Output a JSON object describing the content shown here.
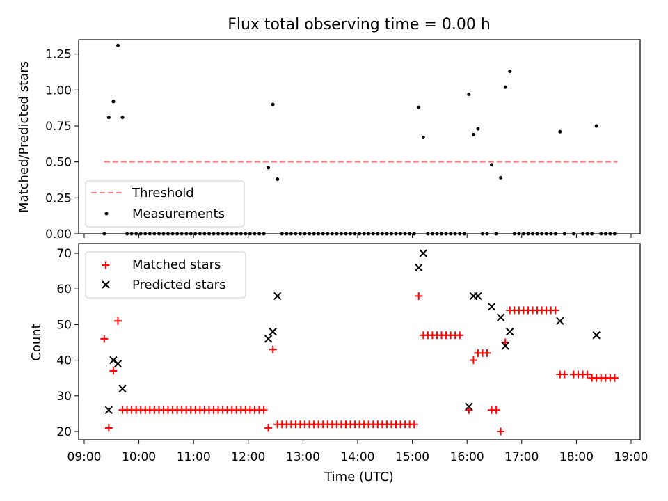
{
  "chart_data": [
    {
      "type": "scatter",
      "title": "Flux total observing time = 0.00 h",
      "xlabel": "",
      "ylabel": "Matched/Predicted stars",
      "xlim": [
        "09:00",
        "19:00"
      ],
      "ylim": [
        0,
        1.35
      ],
      "yticks": [
        "0.00",
        "0.25",
        "0.50",
        "0.75",
        "1.00",
        "1.25"
      ],
      "legend_position": "lower-left",
      "threshold": {
        "name": "Threshold",
        "y": 0.5,
        "x_start": "09:22",
        "x_end": "18:45",
        "color": "#ff7f7f",
        "style": "dashed"
      },
      "series": [
        {
          "name": "Measurements",
          "color": "#000000",
          "marker": "dot",
          "points": [
            [
              "09:22",
              0.0
            ],
            [
              "09:27",
              0.81
            ],
            [
              "09:32",
              0.92
            ],
            [
              "09:37",
              1.31
            ],
            [
              "09:42",
              0.81
            ],
            [
              "09:47",
              0.0
            ],
            [
              "09:52",
              0.0
            ],
            [
              "09:57",
              0.0
            ],
            [
              "10:02",
              0.0
            ],
            [
              "10:07",
              0.0
            ],
            [
              "10:12",
              0.0
            ],
            [
              "10:17",
              0.0
            ],
            [
              "10:22",
              0.0
            ],
            [
              "10:27",
              0.0
            ],
            [
              "10:32",
              0.0
            ],
            [
              "10:37",
              0.0
            ],
            [
              "10:42",
              0.0
            ],
            [
              "10:47",
              0.0
            ],
            [
              "10:52",
              0.0
            ],
            [
              "10:57",
              0.0
            ],
            [
              "11:02",
              0.0
            ],
            [
              "11:07",
              0.0
            ],
            [
              "11:12",
              0.0
            ],
            [
              "11:17",
              0.0
            ],
            [
              "11:22",
              0.0
            ],
            [
              "11:27",
              0.0
            ],
            [
              "11:32",
              0.0
            ],
            [
              "11:37",
              0.0
            ],
            [
              "11:42",
              0.0
            ],
            [
              "11:47",
              0.0
            ],
            [
              "11:52",
              0.0
            ],
            [
              "11:57",
              0.0
            ],
            [
              "12:02",
              0.0
            ],
            [
              "12:07",
              0.0
            ],
            [
              "12:12",
              0.0
            ],
            [
              "12:17",
              0.0
            ],
            [
              "12:22",
              0.46
            ],
            [
              "12:27",
              0.9
            ],
            [
              "12:32",
              0.38
            ],
            [
              "12:37",
              0.0
            ],
            [
              "12:42",
              0.0
            ],
            [
              "12:47",
              0.0
            ],
            [
              "12:52",
              0.0
            ],
            [
              "12:57",
              0.0
            ],
            [
              "13:02",
              0.0
            ],
            [
              "13:07",
              0.0
            ],
            [
              "13:12",
              0.0
            ],
            [
              "13:17",
              0.0
            ],
            [
              "13:22",
              0.0
            ],
            [
              "13:27",
              0.0
            ],
            [
              "13:32",
              0.0
            ],
            [
              "13:37",
              0.0
            ],
            [
              "13:42",
              0.0
            ],
            [
              "13:47",
              0.0
            ],
            [
              "13:52",
              0.0
            ],
            [
              "13:57",
              0.0
            ],
            [
              "14:02",
              0.0
            ],
            [
              "14:07",
              0.0
            ],
            [
              "14:12",
              0.0
            ],
            [
              "14:17",
              0.0
            ],
            [
              "14:22",
              0.0
            ],
            [
              "14:27",
              0.0
            ],
            [
              "14:32",
              0.0
            ],
            [
              "14:37",
              0.0
            ],
            [
              "14:42",
              0.0
            ],
            [
              "14:47",
              0.0
            ],
            [
              "14:52",
              0.0
            ],
            [
              "14:57",
              0.0
            ],
            [
              "15:02",
              0.0
            ],
            [
              "15:07",
              0.88
            ],
            [
              "15:12",
              0.67
            ],
            [
              "15:17",
              0.0
            ],
            [
              "15:22",
              0.0
            ],
            [
              "15:27",
              0.0
            ],
            [
              "15:32",
              0.0
            ],
            [
              "15:37",
              0.0
            ],
            [
              "15:42",
              0.0
            ],
            [
              "15:47",
              0.0
            ],
            [
              "15:52",
              0.0
            ],
            [
              "15:57",
              0.0
            ],
            [
              "16:02",
              0.97
            ],
            [
              "16:07",
              0.69
            ],
            [
              "16:12",
              0.73
            ],
            [
              "16:17",
              0.0
            ],
            [
              "16:22",
              0.0
            ],
            [
              "16:27",
              0.48
            ],
            [
              "16:32",
              0.0
            ],
            [
              "16:37",
              0.39
            ],
            [
              "16:42",
              1.02
            ],
            [
              "16:47",
              1.13
            ],
            [
              "16:52",
              0.0
            ],
            [
              "16:57",
              0.0
            ],
            [
              "17:02",
              0.0
            ],
            [
              "17:07",
              0.0
            ],
            [
              "17:12",
              0.0
            ],
            [
              "17:17",
              0.0
            ],
            [
              "17:22",
              0.0
            ],
            [
              "17:27",
              0.0
            ],
            [
              "17:32",
              0.0
            ],
            [
              "17:37",
              0.0
            ],
            [
              "17:42",
              0.71
            ],
            [
              "17:47",
              0.0
            ],
            [
              "17:57",
              0.0
            ],
            [
              "18:07",
              0.0
            ],
            [
              "18:12",
              0.0
            ],
            [
              "18:17",
              0.0
            ],
            [
              "18:22",
              0.75
            ],
            [
              "18:27",
              0.0
            ],
            [
              "18:32",
              0.0
            ],
            [
              "18:37",
              0.0
            ],
            [
              "18:42",
              0.0
            ]
          ]
        }
      ]
    },
    {
      "type": "scatter",
      "title": "",
      "xlabel": "Time (UTC)",
      "ylabel": "Count",
      "xlim": [
        "09:00",
        "19:00"
      ],
      "ylim": [
        18,
        72
      ],
      "xticks": [
        "09:00",
        "10:00",
        "11:00",
        "12:00",
        "13:00",
        "14:00",
        "15:00",
        "16:00",
        "17:00",
        "18:00",
        "19:00"
      ],
      "yticks": [
        "20",
        "30",
        "40",
        "50",
        "60",
        "70"
      ],
      "legend_position": "upper-left",
      "series": [
        {
          "name": "Matched stars",
          "color": "#ff0000",
          "marker": "plus",
          "points": [
            [
              "09:22",
              46
            ],
            [
              "09:27",
              21
            ],
            [
              "09:32",
              37
            ],
            [
              "09:37",
              51
            ],
            [
              "09:42",
              26
            ],
            [
              "09:47",
              26
            ],
            [
              "09:52",
              26
            ],
            [
              "09:57",
              26
            ],
            [
              "10:02",
              26
            ],
            [
              "10:07",
              26
            ],
            [
              "10:12",
              26
            ],
            [
              "10:17",
              26
            ],
            [
              "10:22",
              26
            ],
            [
              "10:27",
              26
            ],
            [
              "10:32",
              26
            ],
            [
              "10:37",
              26
            ],
            [
              "10:42",
              26
            ],
            [
              "10:47",
              26
            ],
            [
              "10:52",
              26
            ],
            [
              "10:57",
              26
            ],
            [
              "11:02",
              26
            ],
            [
              "11:07",
              26
            ],
            [
              "11:12",
              26
            ],
            [
              "11:17",
              26
            ],
            [
              "11:22",
              26
            ],
            [
              "11:27",
              26
            ],
            [
              "11:32",
              26
            ],
            [
              "11:37",
              26
            ],
            [
              "11:42",
              26
            ],
            [
              "11:47",
              26
            ],
            [
              "11:52",
              26
            ],
            [
              "11:57",
              26
            ],
            [
              "12:02",
              26
            ],
            [
              "12:07",
              26
            ],
            [
              "12:12",
              26
            ],
            [
              "12:17",
              26
            ],
            [
              "12:22",
              21
            ],
            [
              "12:27",
              43
            ],
            [
              "12:32",
              22
            ],
            [
              "12:37",
              22
            ],
            [
              "12:42",
              22
            ],
            [
              "12:47",
              22
            ],
            [
              "12:52",
              22
            ],
            [
              "12:57",
              22
            ],
            [
              "13:02",
              22
            ],
            [
              "13:07",
              22
            ],
            [
              "13:12",
              22
            ],
            [
              "13:17",
              22
            ],
            [
              "13:22",
              22
            ],
            [
              "13:27",
              22
            ],
            [
              "13:32",
              22
            ],
            [
              "13:37",
              22
            ],
            [
              "13:42",
              22
            ],
            [
              "13:47",
              22
            ],
            [
              "13:52",
              22
            ],
            [
              "13:57",
              22
            ],
            [
              "14:02",
              22
            ],
            [
              "14:07",
              22
            ],
            [
              "14:12",
              22
            ],
            [
              "14:17",
              22
            ],
            [
              "14:22",
              22
            ],
            [
              "14:27",
              22
            ],
            [
              "14:32",
              22
            ],
            [
              "14:37",
              22
            ],
            [
              "14:42",
              22
            ],
            [
              "14:47",
              22
            ],
            [
              "14:52",
              22
            ],
            [
              "14:57",
              22
            ],
            [
              "15:02",
              22
            ],
            [
              "15:07",
              58
            ],
            [
              "15:12",
              47
            ],
            [
              "15:17",
              47
            ],
            [
              "15:22",
              47
            ],
            [
              "15:27",
              47
            ],
            [
              "15:32",
              47
            ],
            [
              "15:37",
              47
            ],
            [
              "15:42",
              47
            ],
            [
              "15:47",
              47
            ],
            [
              "15:52",
              47
            ],
            [
              "16:02",
              26
            ],
            [
              "16:07",
              40
            ],
            [
              "16:12",
              42
            ],
            [
              "16:17",
              42
            ],
            [
              "16:22",
              42
            ],
            [
              "16:27",
              26
            ],
            [
              "16:32",
              26
            ],
            [
              "16:37",
              20
            ],
            [
              "16:42",
              45
            ],
            [
              "16:47",
              54
            ],
            [
              "16:52",
              54
            ],
            [
              "16:57",
              54
            ],
            [
              "17:02",
              54
            ],
            [
              "17:07",
              54
            ],
            [
              "17:12",
              54
            ],
            [
              "17:17",
              54
            ],
            [
              "17:22",
              54
            ],
            [
              "17:27",
              54
            ],
            [
              "17:32",
              54
            ],
            [
              "17:37",
              54
            ],
            [
              "17:42",
              36
            ],
            [
              "17:47",
              36
            ],
            [
              "17:57",
              36
            ],
            [
              "18:02",
              36
            ],
            [
              "18:07",
              36
            ],
            [
              "18:12",
              36
            ],
            [
              "18:17",
              35
            ],
            [
              "18:22",
              35
            ],
            [
              "18:27",
              35
            ],
            [
              "18:32",
              35
            ],
            [
              "18:37",
              35
            ],
            [
              "18:42",
              35
            ]
          ]
        },
        {
          "name": "Predicted stars",
          "color": "#000000",
          "marker": "x",
          "points": [
            [
              "09:27",
              26
            ],
            [
              "09:32",
              40
            ],
            [
              "09:37",
              39
            ],
            [
              "09:42",
              32
            ],
            [
              "12:22",
              46
            ],
            [
              "12:27",
              48
            ],
            [
              "12:32",
              58
            ],
            [
              "15:07",
              66
            ],
            [
              "15:12",
              70
            ],
            [
              "16:02",
              27
            ],
            [
              "16:07",
              58
            ],
            [
              "16:12",
              58
            ],
            [
              "16:27",
              55
            ],
            [
              "16:37",
              52
            ],
            [
              "16:42",
              44
            ],
            [
              "16:47",
              48
            ],
            [
              "17:42",
              51
            ],
            [
              "18:22",
              47
            ]
          ]
        }
      ]
    }
  ]
}
